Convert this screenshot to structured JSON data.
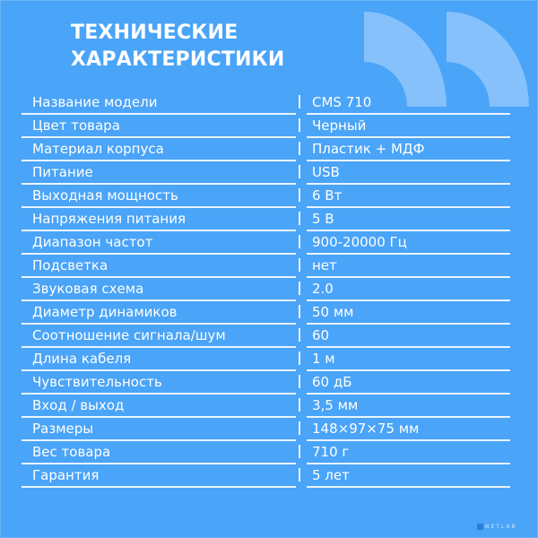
{
  "title_line1": "ТЕХНИЧЕСКИЕ",
  "title_line2": "ХАРАКТЕРИСТИКИ",
  "colors": {
    "background": "#4aa4f8",
    "quote_shape": "#86c1fc",
    "text": "#ffffff"
  },
  "specs": [
    {
      "label": "Название модели",
      "value": "CMS 710"
    },
    {
      "label": "Цвет товара",
      "value": "Черный"
    },
    {
      "label": "Материал корпуса",
      "value": "Пластик + МДФ"
    },
    {
      "label": "Питание",
      "value": "USB"
    },
    {
      "label": "Выходная мощность",
      "value": "6 Вт"
    },
    {
      "label": "Напряжения питания",
      "value": "5 В"
    },
    {
      "label": "Диапазон частот",
      "value": "900-20000 Гц"
    },
    {
      "label": "Подсветка",
      "value": "нет"
    },
    {
      "label": "Звуковая схема",
      "value": "2.0"
    },
    {
      "label": "Диаметр динамиков",
      "value": "50 мм"
    },
    {
      "label": "Соотношение сигнала/шум",
      "value": "60"
    },
    {
      "label": "Длина кабеля",
      "value": "1 м"
    },
    {
      "label": "Чувствительность",
      "value": "60 дБ"
    },
    {
      "label": "Вход / выход",
      "value": "3,5 мм"
    },
    {
      "label": "Размеры",
      "value": "148×97×75 мм"
    },
    {
      "label": "Вес товара",
      "value": "710 г"
    },
    {
      "label": "Гарантия",
      "value": "5 лет"
    }
  ],
  "watermark": "NETLAB"
}
